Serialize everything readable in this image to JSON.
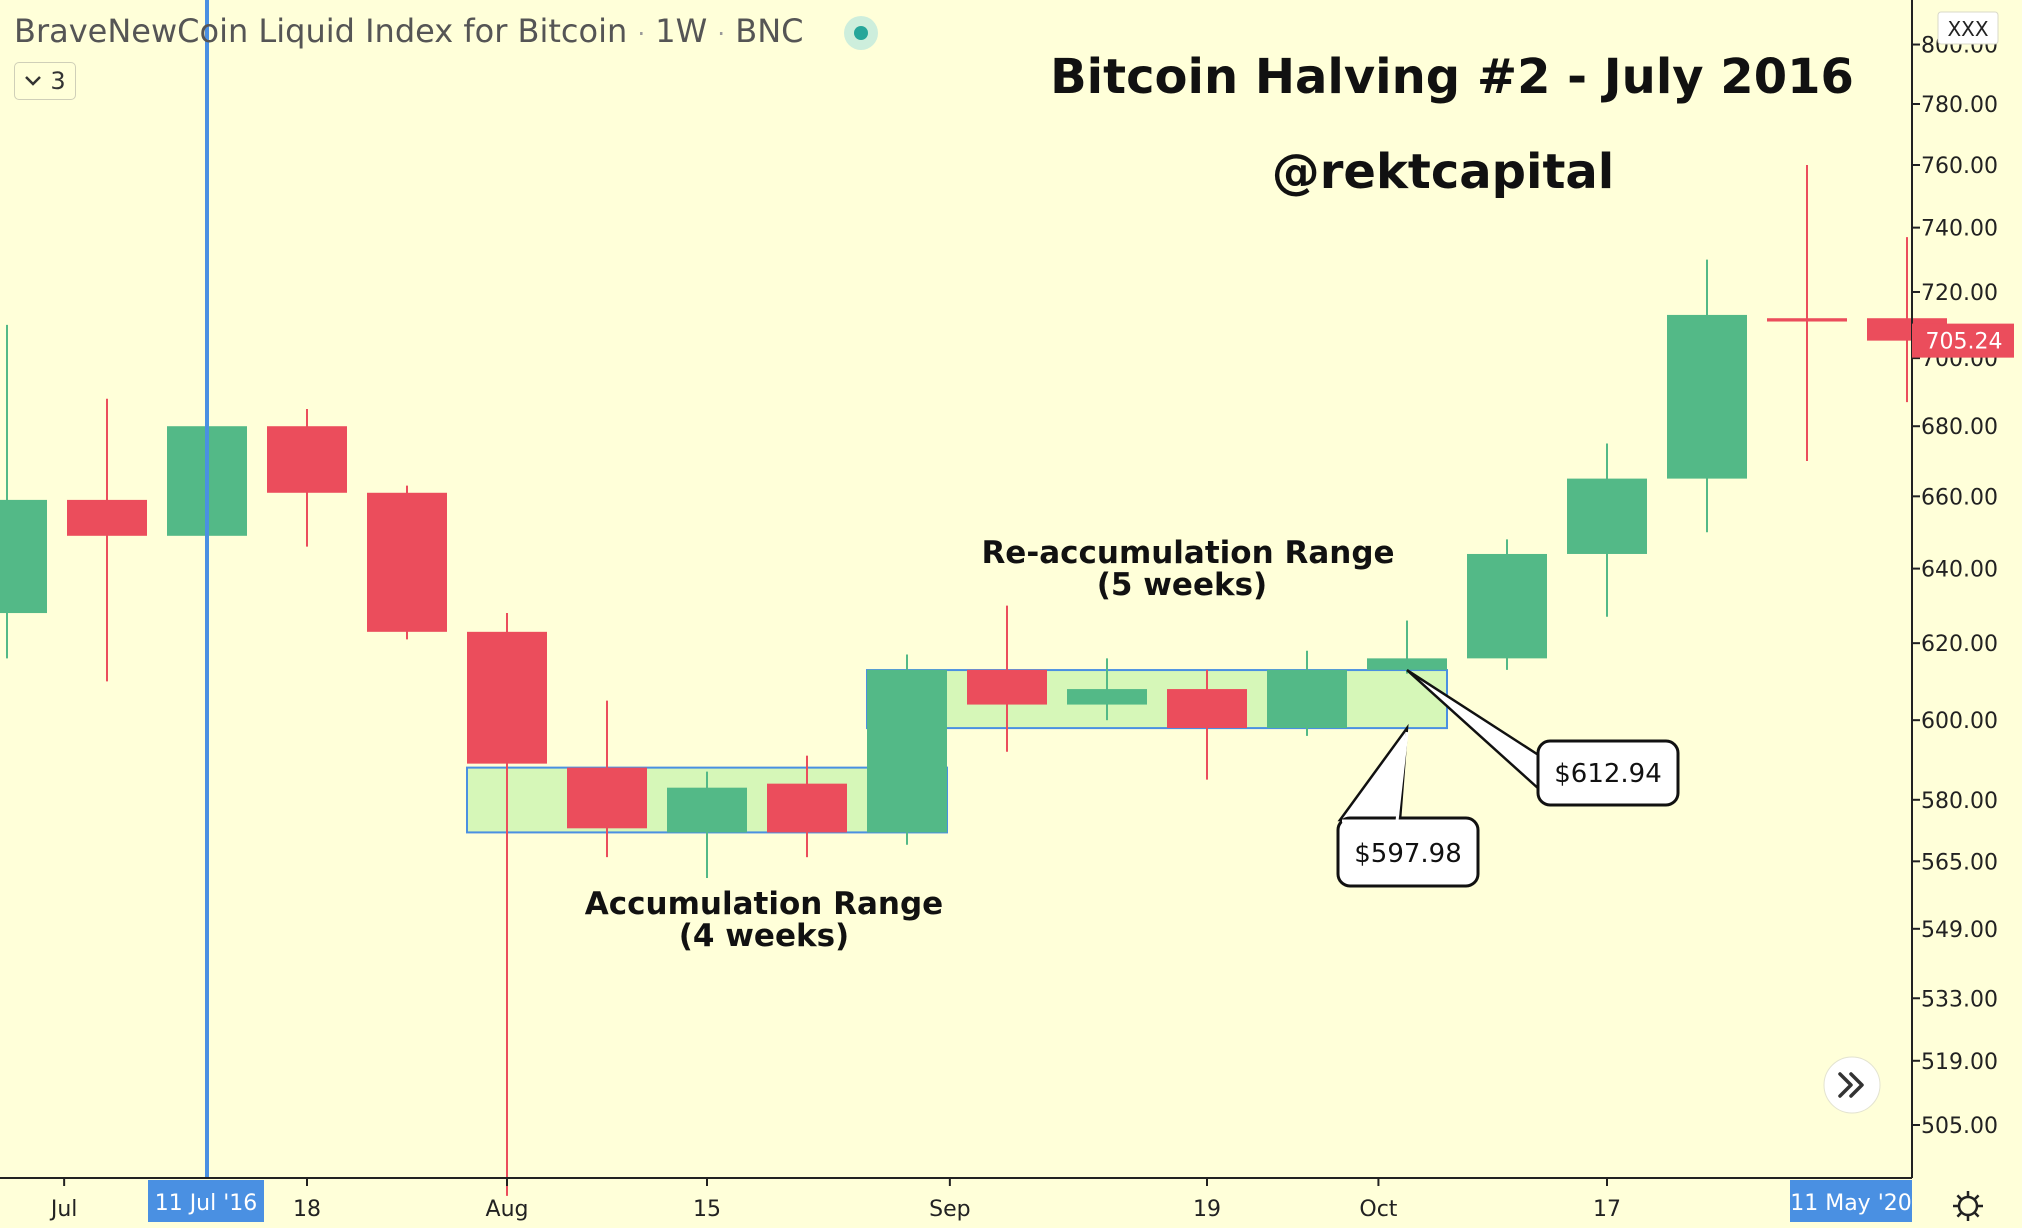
{
  "header": {
    "symbol": "BraveNewCoin Liquid Index for Bitcoin",
    "interval": "1W",
    "exchange": "BNC",
    "sep": "·",
    "collapse_count": "3",
    "chevron_icon": "chevron-down-icon",
    "status_icon": "market-status-dot-icon"
  },
  "currency_badge": "XXX",
  "overlay": {
    "title": "Bitcoin Halving #2 - July 2016",
    "handle": "@rektcapital"
  },
  "annotations": {
    "accumulation_line1": "Accumulation Range",
    "accumulation_line2": "(4 weeks)",
    "reaccumulation_line1": "Re-accumulation Range",
    "reaccumulation_line2": "(5 weeks)",
    "callout_low": "$597.98",
    "callout_high": "$612.94"
  },
  "time_axis": {
    "labels": [
      "Jul",
      "18",
      "Aug",
      "15",
      "Sep",
      "19",
      "Oct",
      "17"
    ],
    "crosshair_label": "11 Jul '16",
    "end_label": "11 May '20"
  },
  "price_axis": {
    "ticks": [
      "800.00",
      "780.00",
      "760.00",
      "740.00",
      "720.00",
      "700.00",
      "680.00",
      "660.00",
      "640.00",
      "620.00",
      "600.00",
      "580.00",
      "565.00",
      "549.00",
      "533.00",
      "519.00",
      "505.00"
    ],
    "last_price": "705.24"
  },
  "controls": {
    "scroll_icon": "double-chevron-right-icon",
    "settings_icon": "gear-icon"
  },
  "colors": {
    "up": "#53b987",
    "down": "#eb4d5c",
    "crosshair": "#4a90e2",
    "range_fill": "#d6f7b8",
    "range_border": "#4a90e2",
    "background": "#ffffd9"
  },
  "chart_data": {
    "type": "candlestick",
    "scale": "log",
    "ylim": [
      492,
      805
    ],
    "candles": [
      {
        "date": "2016-06-27",
        "open": 628,
        "high": 710,
        "low": 616,
        "close": 659
      },
      {
        "date": "2016-07-04",
        "open": 659,
        "high": 688,
        "low": 610,
        "close": 649
      },
      {
        "date": "2016-07-11",
        "open": 649,
        "high": 685,
        "low": 640,
        "close": 680
      },
      {
        "date": "2016-07-18",
        "open": 680,
        "high": 685,
        "low": 646,
        "close": 661
      },
      {
        "date": "2016-07-25",
        "open": 661,
        "high": 663,
        "low": 621,
        "close": 623
      },
      {
        "date": "2016-08-01",
        "open": 623,
        "high": 628,
        "low": 490,
        "close": 589
      },
      {
        "date": "2016-08-08",
        "open": 588,
        "high": 605,
        "low": 566,
        "close": 573
      },
      {
        "date": "2016-08-15",
        "open": 572,
        "high": 587,
        "low": 561,
        "close": 583
      },
      {
        "date": "2016-08-22",
        "open": 584,
        "high": 591,
        "low": 566,
        "close": 572
      },
      {
        "date": "2016-08-29",
        "open": 572,
        "high": 617,
        "low": 569,
        "close": 613
      },
      {
        "date": "2016-09-05",
        "open": 613,
        "high": 630,
        "low": 592,
        "close": 604
      },
      {
        "date": "2016-09-12",
        "open": 604,
        "high": 616,
        "low": 600,
        "close": 608
      },
      {
        "date": "2016-09-19",
        "open": 608,
        "high": 613,
        "low": 585,
        "close": 598
      },
      {
        "date": "2016-09-26",
        "open": 598,
        "high": 618,
        "low": 596,
        "close": 613
      },
      {
        "date": "2016-10-03",
        "open": 613,
        "high": 626,
        "low": 612,
        "close": 616
      },
      {
        "date": "2016-10-10",
        "open": 616,
        "high": 648,
        "low": 613,
        "close": 644
      },
      {
        "date": "2016-10-17",
        "open": 644,
        "high": 675,
        "low": 627,
        "close": 665
      },
      {
        "date": "2016-10-24",
        "open": 665,
        "high": 730,
        "low": 650,
        "close": 713
      },
      {
        "date": "2016-10-31",
        "open": 712,
        "high": 760,
        "low": 670,
        "close": 711
      },
      {
        "date": "2016-11-07",
        "open": 712,
        "high": 737,
        "low": 687,
        "close": 705.24
      }
    ],
    "ranges": [
      {
        "name": "Accumulation Range",
        "from": "2016-08-01",
        "to": "2016-08-29",
        "top": 588,
        "bottom": 572
      },
      {
        "name": "Re-accumulation Range",
        "from": "2016-08-29",
        "to": "2016-10-03",
        "top": 612.94,
        "bottom": 597.98
      }
    ]
  }
}
